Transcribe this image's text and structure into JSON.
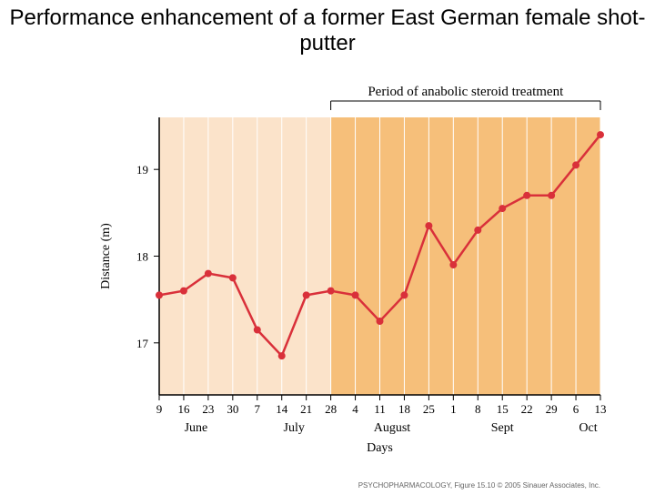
{
  "title": "Performance enhancement of a former East German female shot-putter",
  "annotation_label": "Period of anabolic steroid treatment",
  "xlabel": "Days",
  "ylabel": "Distance (m)",
  "attribution": "PSYCHOPHARMACOLOGY, Figure 15.10  © 2005 Sinauer Associates, Inc.",
  "chart": {
    "type": "line",
    "background_color": "#ffffff",
    "plot_bg_left_color": "#fbe3ca",
    "plot_bg_right_color": "#f6bf7a",
    "gridline_color": "#ffffff",
    "axis_color": "#000000",
    "line_color": "#d9303a",
    "marker_color": "#d9303a",
    "line_width": 2.5,
    "marker_radius": 4,
    "label_font_size": 14,
    "tick_font_size": 13,
    "annotation_font_size": 15,
    "title_font_size": 24,
    "ylim": [
      16.4,
      19.6
    ],
    "yticks": [
      17,
      18,
      19
    ],
    "x_tick_labels": [
      "9",
      "16",
      "23",
      "30",
      "7",
      "14",
      "21",
      "28",
      "4",
      "11",
      "18",
      "25",
      "1",
      "8",
      "15",
      "22",
      "29",
      "6",
      "13"
    ],
    "x_month_labels": [
      {
        "label": "June",
        "center_index": 1.5
      },
      {
        "label": "July",
        "center_index": 5.5
      },
      {
        "label": "August",
        "center_index": 9.5
      },
      {
        "label": "Sept",
        "center_index": 14
      },
      {
        "label": "Oct",
        "center_index": 17.5
      }
    ],
    "treatment_start_index": 7,
    "values": [
      17.55,
      17.6,
      17.8,
      17.75,
      17.15,
      16.85,
      17.55,
      17.6,
      17.55,
      17.25,
      17.55,
      18.35,
      17.9,
      18.3,
      18.55,
      18.7,
      18.7,
      19.05,
      19.4
    ]
  }
}
